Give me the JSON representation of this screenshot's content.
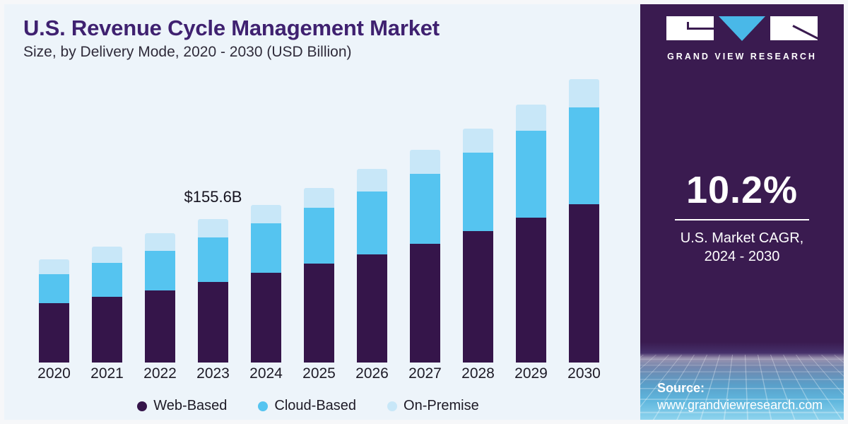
{
  "header": {
    "title": "U.S. Revenue Cycle Management Market",
    "subtitle": "Size, by Delivery Mode, 2020 - 2030 (USD Billion)"
  },
  "chart_data": {
    "type": "bar",
    "stacked": true,
    "title": "U.S. Revenue Cycle Management Market",
    "units": "USD Billion",
    "categories": [
      "2020",
      "2021",
      "2022",
      "2023",
      "2024",
      "2025",
      "2026",
      "2027",
      "2028",
      "2029",
      "2030"
    ],
    "series": [
      {
        "name": "Web-Based",
        "color": "#35154a",
        "values": [
          64.4,
          71.3,
          78.2,
          87.4,
          97.3,
          107.3,
          117.3,
          128.8,
          142.6,
          157.1,
          171.7
        ]
      },
      {
        "name": "Cloud-Based",
        "color": "#55c4f0",
        "values": [
          31.4,
          36.8,
          42.9,
          48.3,
          53.7,
          60.6,
          68.2,
          75.9,
          85.1,
          94.3,
          105.0
        ]
      },
      {
        "name": "On-Premise",
        "color": "#c8e7f8",
        "values": [
          16.1,
          17.6,
          19.2,
          19.9,
          19.9,
          21.5,
          24.5,
          26.1,
          26.1,
          28.4,
          30.7
        ]
      }
    ],
    "totals": [
      111.9,
      125.7,
      140.3,
      155.6,
      170.9,
      189.4,
      210.0,
      230.8,
      253.8,
      279.8,
      307.4
    ],
    "annotation": {
      "text": "$155.6B",
      "category": "2023"
    },
    "xlabel": "",
    "ylabel": "",
    "grid": false,
    "legend_position": "bottom"
  },
  "sidebar": {
    "logo": {
      "brand": "GRAND VIEW RESEARCH"
    },
    "stat": {
      "value": "10.2%",
      "label_line1": "U.S. Market CAGR,",
      "label_line2": "2024 - 2030"
    },
    "source": {
      "label": "Source:",
      "url": "www.grandviewresearch.com"
    }
  },
  "colors": {
    "background": "#edf4fa",
    "sidebar_background": "#3a1b50",
    "title": "#3f2170",
    "web_based": "#35154a",
    "cloud_based": "#55c4f0",
    "on_premise": "#c8e7f8",
    "logo_triangle": "#49b8e8"
  }
}
